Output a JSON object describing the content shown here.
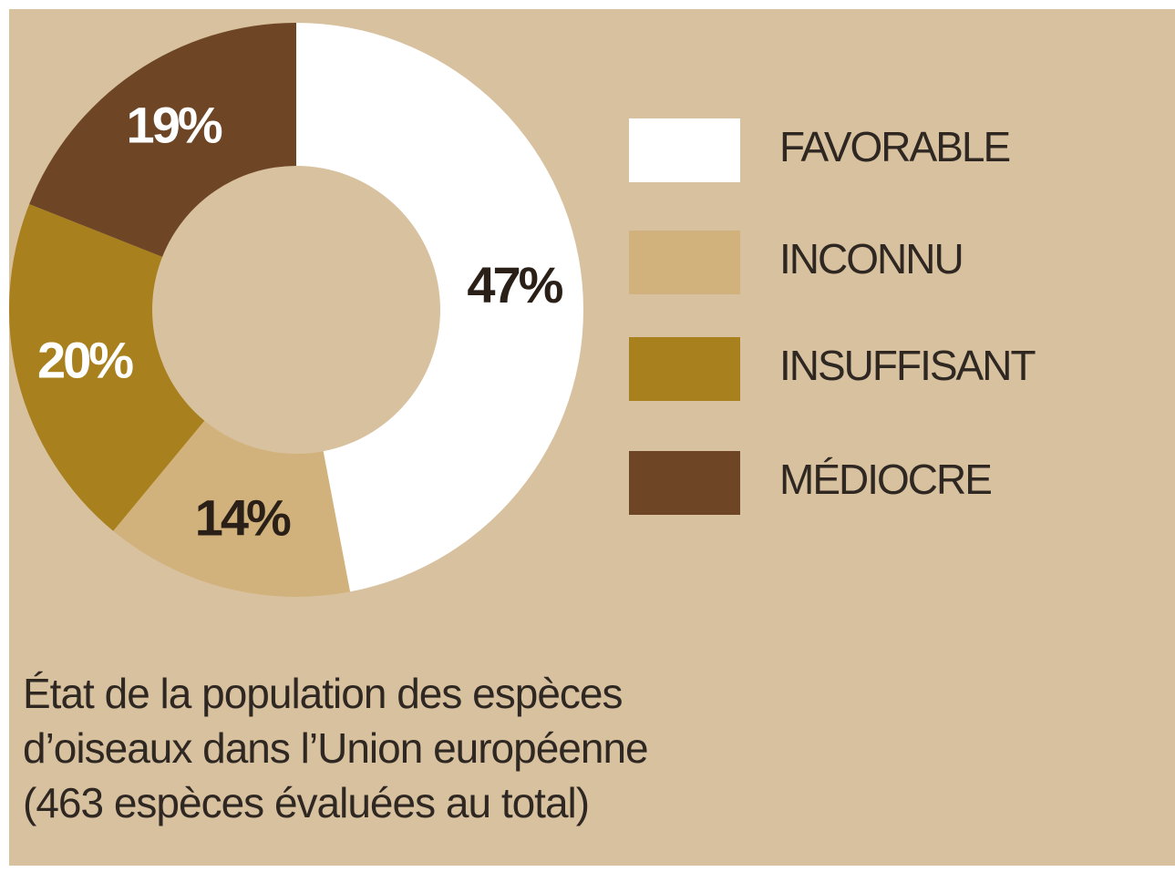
{
  "chart_data": {
    "type": "donut",
    "categories": [
      "FAVORABLE",
      "INCONNU",
      "INSUFFISANT",
      "MÉDIOCRE"
    ],
    "values": [
      47,
      14,
      20,
      19
    ],
    "value_labels": [
      "47%",
      "14%",
      "20%",
      "19%"
    ],
    "colors": [
      "#ffffff",
      "#d2b27c",
      "#a8801e",
      "#6e4626"
    ],
    "title": [
      "État de la population des espèces",
      "d’oiseaux dans l’Union européenne",
      "(463 espèces évaluées au total)"
    ]
  }
}
